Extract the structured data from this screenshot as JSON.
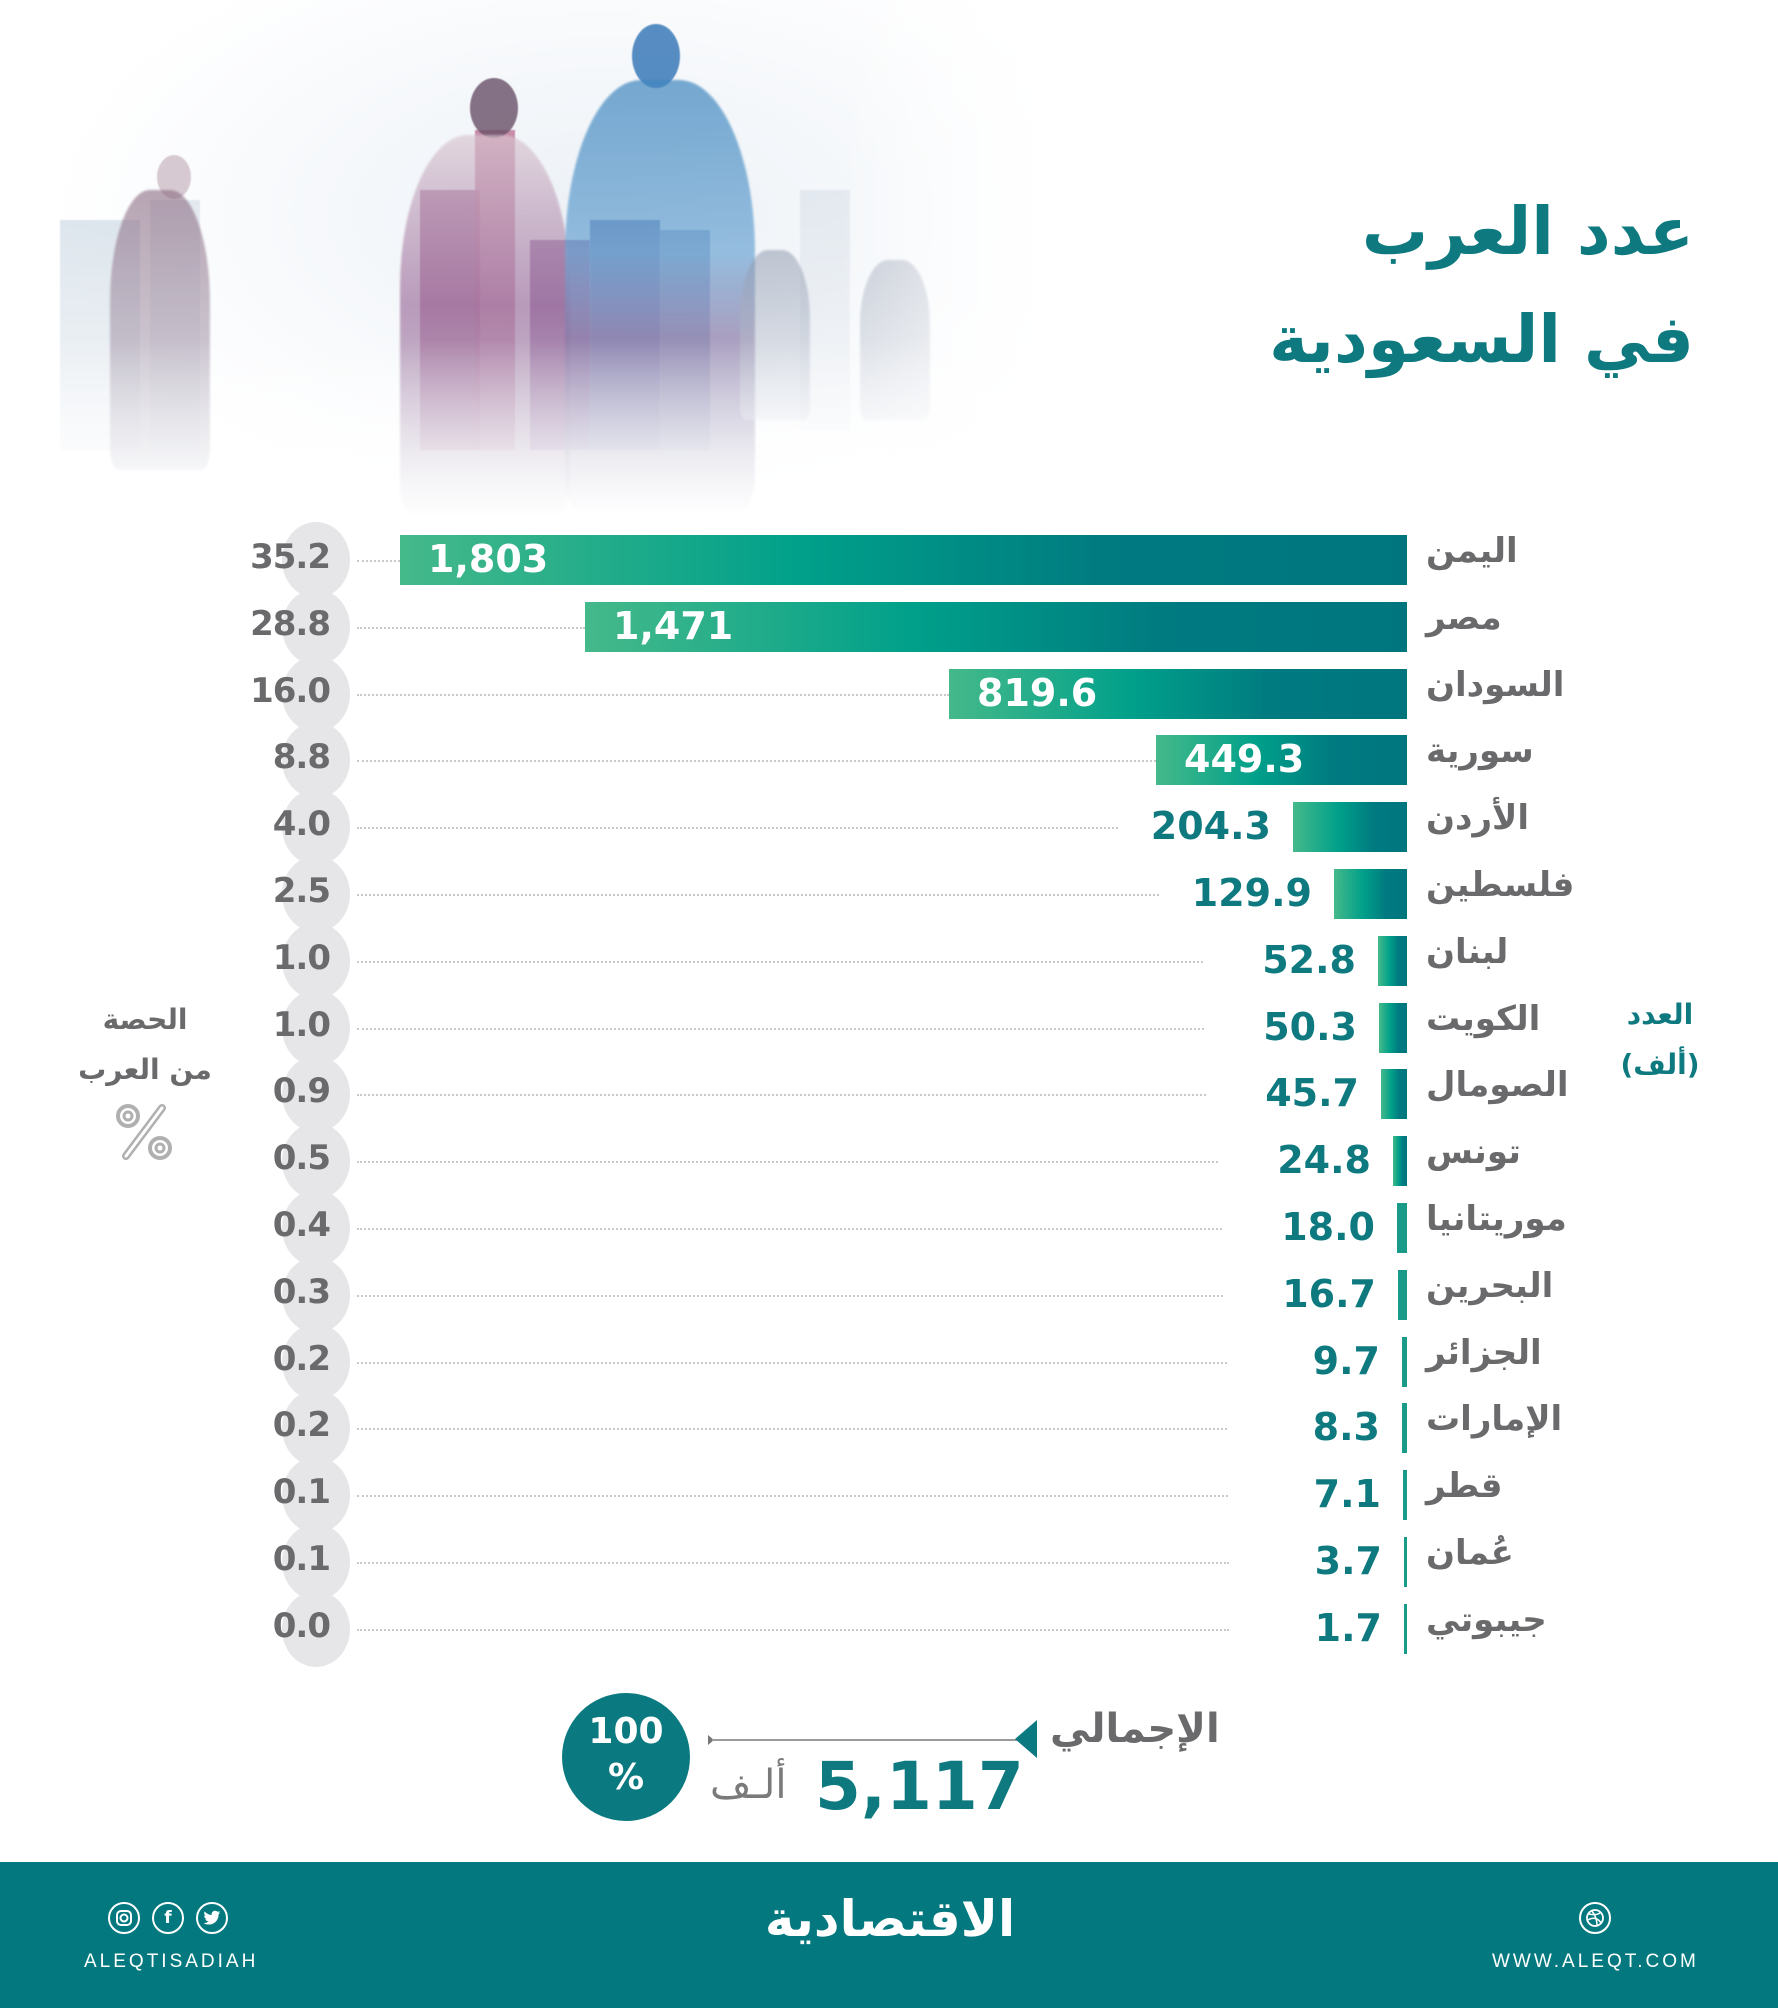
{
  "title": {
    "line1": "عدد العرب",
    "line2": "في السعودية"
  },
  "axes": {
    "left_label_line1": "الحصة",
    "left_label_line2": "من العرب",
    "left_icon": "percent-icon",
    "right_label_line1": "العدد",
    "right_label_line2": "(ألف)"
  },
  "rows": [
    {
      "country": "اليمن",
      "value": "1,803",
      "pct": "35.2"
    },
    {
      "country": "مصر",
      "value": "1,471",
      "pct": "28.8"
    },
    {
      "country": "السودان",
      "value": "819.6",
      "pct": "16.0"
    },
    {
      "country": "سورية",
      "value": "449.3",
      "pct": "8.8"
    },
    {
      "country": "الأردن",
      "value": "204.3",
      "pct": "4.0"
    },
    {
      "country": "فلسطين",
      "value": "129.9",
      "pct": "2.5"
    },
    {
      "country": "لبنان",
      "value": "52.8",
      "pct": "1.0"
    },
    {
      "country": "الكويت",
      "value": "50.3",
      "pct": "1.0"
    },
    {
      "country": "الصومال",
      "value": "45.7",
      "pct": "0.9"
    },
    {
      "country": "تونس",
      "value": "24.8",
      "pct": "0.5"
    },
    {
      "country": "موريتانيا",
      "value": "18.0",
      "pct": "0.4"
    },
    {
      "country": "البحرين",
      "value": "16.7",
      "pct": "0.3"
    },
    {
      "country": "الجزائر",
      "value": "9.7",
      "pct": "0.2"
    },
    {
      "country": "الإمارات",
      "value": "8.3",
      "pct": "0.2"
    },
    {
      "country": "قطر",
      "value": "7.1",
      "pct": "0.1"
    },
    {
      "country": "عُمان",
      "value": "3.7",
      "pct": "0.1"
    },
    {
      "country": "جيبوتي",
      "value": "1.7",
      "pct": "0.0"
    }
  ],
  "total": {
    "label": "الإجمالي",
    "value": "5,117",
    "unit": "ألـف",
    "pct_line1": "100",
    "pct_line2": "%"
  },
  "footer": {
    "social_icons": [
      "instagram-icon",
      "facebook-icon",
      "twitter-icon"
    ],
    "handle": "ALEQTISADIAH",
    "logo": "الاقتصادية",
    "web_icon": "dribbble-globe-icon",
    "website": "WWW.ALEQT.COM"
  },
  "colors": {
    "teal": "#0e7a80",
    "footer_bg": "#03797f",
    "bar_gradient_start": "#45b98a",
    "bar_gradient_end": "#00757e",
    "text_gray": "#6a6a6c",
    "pct_circle": "#e6e6e8"
  },
  "chart_data": {
    "type": "bar",
    "orientation": "horizontal",
    "title": "عدد العرب في السعودية",
    "xlabel": "العدد (ألف)",
    "ylabel": "",
    "categories": [
      "اليمن",
      "مصر",
      "السودان",
      "سورية",
      "الأردن",
      "فلسطين",
      "لبنان",
      "الكويت",
      "الصومال",
      "تونس",
      "موريتانيا",
      "البحرين",
      "الجزائر",
      "الإمارات",
      "قطر",
      "عُمان",
      "جيبوتي"
    ],
    "series": [
      {
        "name": "العدد (ألف)",
        "values": [
          1803,
          1471,
          819.6,
          449.3,
          204.3,
          129.9,
          52.8,
          50.3,
          45.7,
          24.8,
          18.0,
          16.7,
          9.7,
          8.3,
          7.1,
          3.7,
          1.7
        ]
      },
      {
        "name": "الحصة من العرب %",
        "values": [
          35.2,
          28.8,
          16.0,
          8.8,
          4.0,
          2.5,
          1.0,
          1.0,
          0.9,
          0.5,
          0.4,
          0.3,
          0.2,
          0.2,
          0.1,
          0.1,
          0.0
        ]
      }
    ],
    "total": {
      "value": 5117,
      "unit": "ألف",
      "pct": 100
    },
    "grid": false,
    "legend": "none"
  }
}
